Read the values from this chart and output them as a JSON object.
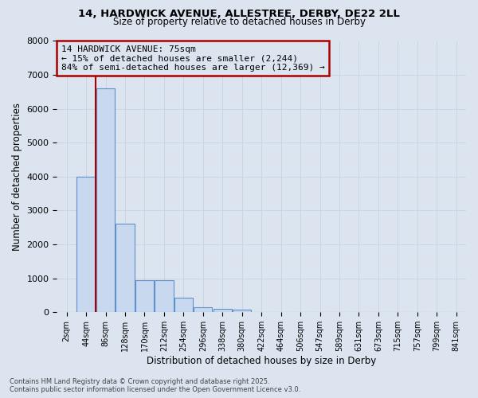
{
  "title1": "14, HARDWICK AVENUE, ALLESTREE, DERBY, DE22 2LL",
  "title2": "Size of property relative to detached houses in Derby",
  "xlabel": "Distribution of detached houses by size in Derby",
  "ylabel": "Number of detached properties",
  "categories": [
    "2sqm",
    "44sqm",
    "86sqm",
    "128sqm",
    "170sqm",
    "212sqm",
    "254sqm",
    "296sqm",
    "338sqm",
    "380sqm",
    "422sqm",
    "464sqm",
    "506sqm",
    "547sqm",
    "589sqm",
    "631sqm",
    "673sqm",
    "715sqm",
    "757sqm",
    "799sqm",
    "841sqm"
  ],
  "values": [
    0,
    4000,
    6600,
    2600,
    950,
    950,
    430,
    140,
    100,
    70,
    0,
    0,
    0,
    0,
    0,
    0,
    0,
    0,
    0,
    0,
    0
  ],
  "bar_color": "#c8d8ee",
  "bar_edge_color": "#6090c8",
  "grid_color": "#c8d4e8",
  "red_line_x": 1.5,
  "annotation_title": "14 HARDWICK AVENUE: 75sqm",
  "annotation_line1": "← 15% of detached houses are smaller (2,244)",
  "annotation_line2": "84% of semi-detached houses are larger (12,369) →",
  "annotation_box_color": "#aa0000",
  "footer1": "Contains HM Land Registry data © Crown copyright and database right 2025.",
  "footer2": "Contains public sector information licensed under the Open Government Licence v3.0.",
  "ylim": [
    0,
    8000
  ],
  "yticks": [
    0,
    1000,
    2000,
    3000,
    4000,
    5000,
    6000,
    7000,
    8000
  ],
  "bg_color": "#dce4f0"
}
